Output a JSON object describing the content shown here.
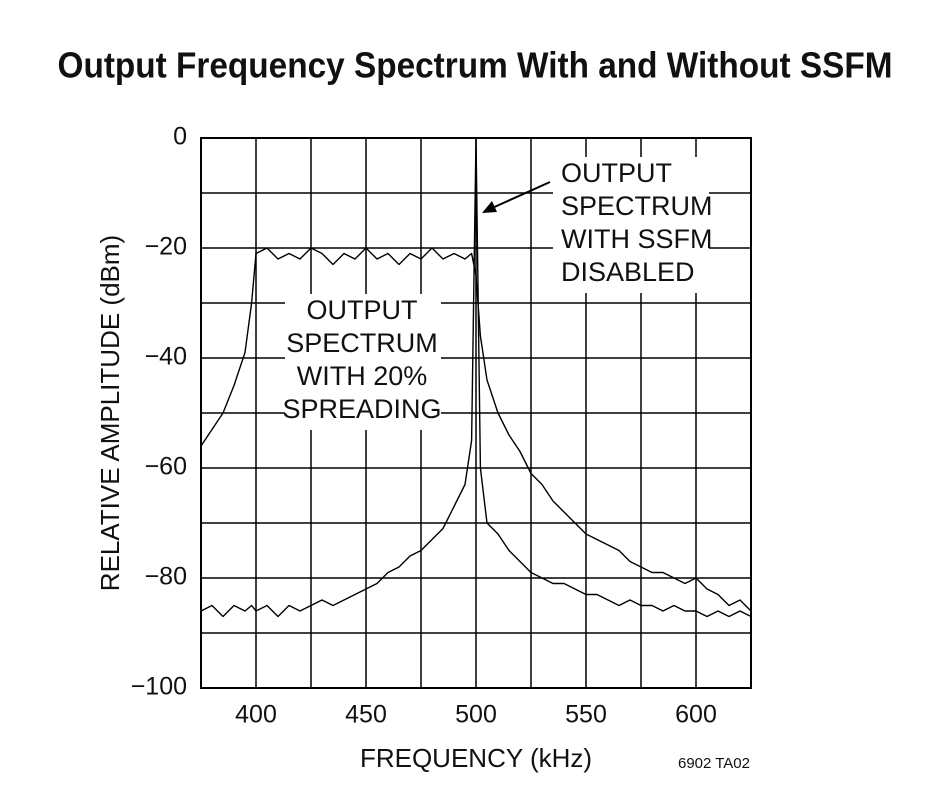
{
  "chart_data": {
    "type": "line",
    "title": "Output Frequency Spectrum With and Without SSFM",
    "x_label": "FREQUENCY (kHz)",
    "y_label": "RELATIVE AMPLITUDE (dBm)",
    "footnote": "6902 TA02",
    "xlim": [
      375,
      625
    ],
    "ylim": [
      -100,
      0
    ],
    "xticks": [
      400,
      450,
      500,
      550,
      600
    ],
    "yticks": [
      0,
      {
        "value": -20,
        "label": "−20"
      },
      {
        "value": -40,
        "label": "−40"
      },
      {
        "value": -60,
        "label": "−60"
      },
      {
        "value": -80,
        "label": "−80"
      },
      {
        "value": -100,
        "label": "−100"
      }
    ],
    "x_grid": [
      375,
      400,
      425,
      450,
      475,
      500,
      525,
      550,
      575,
      600,
      625
    ],
    "y_grid": [
      0,
      -10,
      -20,
      -30,
      -40,
      -50,
      -60,
      -70,
      -80,
      -90,
      -100
    ],
    "grid": true,
    "series": [
      {
        "color": "#000000",
        "x": [
          375,
          380,
          385,
          390,
          395,
          398,
          400,
          405,
          410,
          415,
          420,
          425,
          430,
          435,
          440,
          445,
          450,
          455,
          460,
          465,
          470,
          475,
          480,
          485,
          490,
          495,
          498,
          500,
          502,
          505,
          510,
          515,
          520,
          525,
          530,
          535,
          540,
          545,
          550,
          555,
          560,
          565,
          570,
          575,
          580,
          585,
          590,
          595,
          600,
          605,
          610,
          615,
          620,
          625
        ],
        "values": [
          -56,
          -53,
          -50,
          -45,
          -39,
          -30,
          -21,
          -20,
          -22,
          -21,
          -22,
          -20,
          -21,
          -23,
          -21,
          -22,
          -20,
          -22,
          -21,
          -23,
          -21,
          -22,
          -20,
          -22,
          -21,
          -22,
          -21,
          -25,
          -36,
          -44,
          -50,
          -54,
          -57,
          -61,
          -63,
          -66,
          -68,
          -70,
          -72,
          -73,
          -74,
          -75,
          -77,
          -78,
          -79,
          -79,
          -80,
          -81,
          -80,
          -82,
          -83,
          -85,
          -84,
          -86
        ]
      },
      {
        "color": "#000000",
        "x": [
          375,
          380,
          385,
          390,
          395,
          398,
          400,
          405,
          410,
          415,
          420,
          425,
          430,
          435,
          440,
          445,
          450,
          455,
          460,
          465,
          470,
          475,
          480,
          485,
          490,
          495,
          498,
          500,
          502,
          505,
          510,
          515,
          520,
          525,
          530,
          535,
          540,
          545,
          550,
          555,
          560,
          565,
          570,
          575,
          580,
          585,
          590,
          595,
          600,
          605,
          610,
          615,
          620,
          625
        ],
        "values": [
          -86,
          -85,
          -87,
          -85,
          -86,
          -85,
          -86,
          -85,
          -87,
          -85,
          -86,
          -85,
          -84,
          -85,
          -84,
          -83,
          -82,
          -81,
          -79,
          -78,
          -76,
          -75,
          -73,
          -71,
          -67,
          -63,
          -55,
          0,
          -60,
          -70,
          -72,
          -75,
          -77,
          -79,
          -80,
          -81,
          -81,
          -82,
          -83,
          -83,
          -84,
          -85,
          -84,
          -85,
          -85,
          -86,
          -85,
          -86,
          -86,
          -87,
          -86,
          -87,
          -86,
          -87
        ]
      }
    ],
    "annotations": [
      {
        "lines": [
          "OUTPUT",
          "SPECTRUM",
          "WITH 20%",
          "SPREADING"
        ]
      },
      {
        "lines": [
          "OUTPUT",
          "SPECTRUM",
          "WITH SSFM",
          "DISABLED"
        ]
      }
    ]
  }
}
